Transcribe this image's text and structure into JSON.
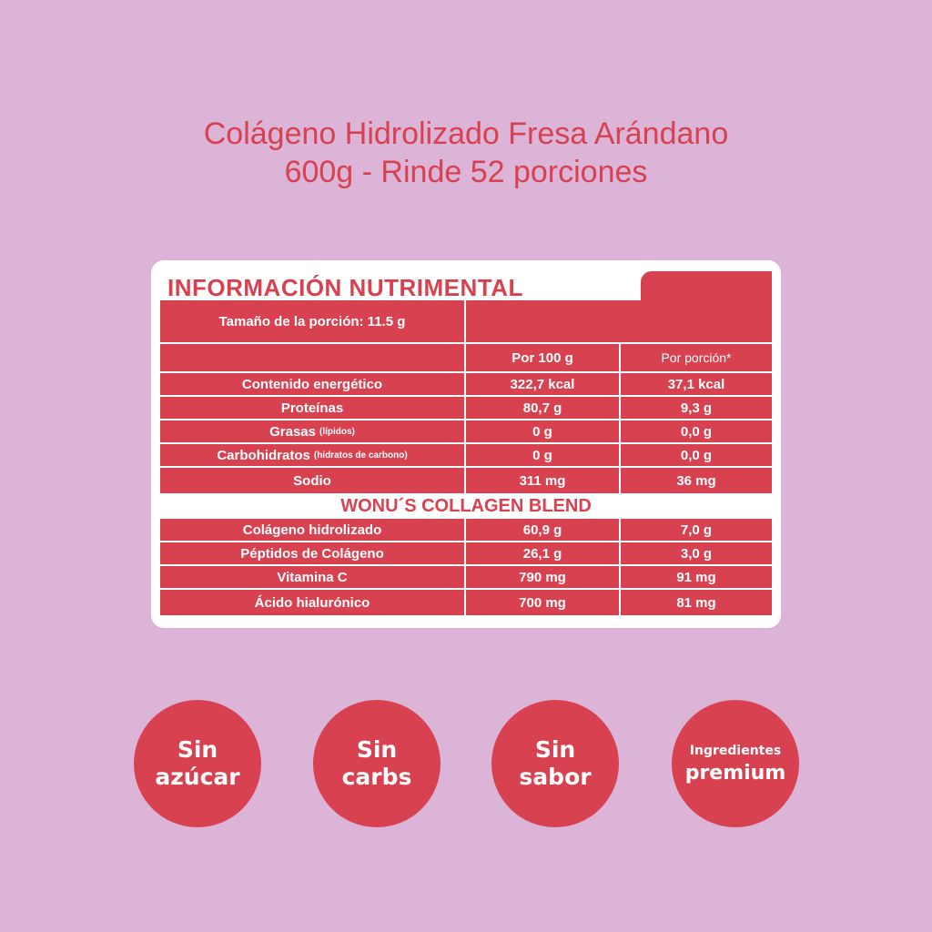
{
  "title": {
    "line1": "Colágeno Hidrolizado Fresa Arándano",
    "line2": "600g - Rinde 52 porciones"
  },
  "nutrition": {
    "heading": "INFORMACIÓN NUTRIMENTAL",
    "serving_size": "Tamaño de la porción: 11.5 g",
    "col_per100": "Por 100 g",
    "col_perportion": "Por porción*",
    "rows": [
      {
        "name": "Contenido energético",
        "sub": "",
        "per100": "322,7 kcal",
        "portion": "37,1 kcal"
      },
      {
        "name": "Proteínas",
        "sub": "",
        "per100": "80,7 g",
        "portion": "9,3 g"
      },
      {
        "name": "Grasas",
        "sub": "(lípidos)",
        "per100": "0 g",
        "portion": "0,0 g"
      },
      {
        "name": "Carbohidratos",
        "sub": "(hidratos de carbono)",
        "per100": "0 g",
        "portion": "0,0 g"
      },
      {
        "name": "Sodio",
        "sub": "",
        "per100": "311 mg",
        "portion": "36 mg"
      }
    ],
    "blend_heading": "WONU´S COLLAGEN BLEND",
    "blend_rows": [
      {
        "name": "Colágeno hidrolizado",
        "per100": "60,9 g",
        "portion": "7,0 g"
      },
      {
        "name": "Péptidos de Colágeno",
        "per100": "26,1 g",
        "portion": "3,0 g"
      },
      {
        "name": "Vitamina C",
        "per100": "790 mg",
        "portion": "91 mg"
      },
      {
        "name": "Ácido hialurónico",
        "per100": "700 mg",
        "portion": "81 mg"
      }
    ]
  },
  "badges": [
    {
      "line1": "Sin",
      "line2": "azúcar"
    },
    {
      "line1": "Sin",
      "line2": "carbs"
    },
    {
      "line1": "Sin",
      "line2": "sabor"
    },
    {
      "line1": "Ingredientes",
      "line2": "premium"
    }
  ],
  "colors": {
    "background": "#dbb4d8",
    "accent": "#d8414f",
    "card": "#ffffff"
  }
}
